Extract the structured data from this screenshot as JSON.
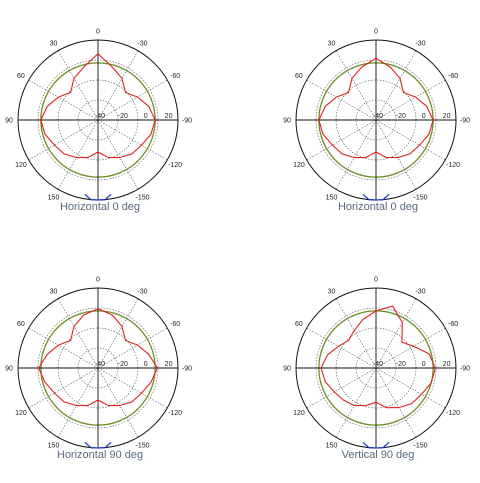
{
  "chart_data": [
    {
      "type": "polar",
      "title": "Horizontal 0 deg",
      "angle_labels": [
        "0",
        "-30",
        "-60",
        "-90",
        "-120",
        "-150",
        "180",
        "150",
        "120",
        "90",
        "60",
        "30"
      ],
      "radial_labels": [
        "-40",
        "-20",
        "0",
        "20"
      ],
      "r_range": [
        -40,
        30
      ],
      "reference_level": 10,
      "series": [
        {
          "color": "#e02020",
          "angles": [
            -180,
            -165,
            -150,
            -135,
            -120,
            -105,
            -90,
            -75,
            -60,
            -45,
            -30,
            -15,
            0,
            15,
            30,
            45,
            60,
            75,
            90,
            105,
            120,
            135,
            150,
            165,
            180
          ],
          "values": [
            -12,
            -6,
            -2,
            2,
            4,
            8,
            10,
            6,
            0,
            -6,
            2,
            8,
            18,
            8,
            2,
            -6,
            0,
            6,
            10,
            8,
            4,
            2,
            -2,
            -6,
            -12
          ]
        },
        {
          "color": "#1f3fbf",
          "angles": [
            170,
            175,
            180,
            -175,
            -170
          ],
          "values": [
            26,
            30,
            30,
            30,
            26
          ]
        }
      ]
    },
    {
      "type": "polar",
      "title": "Horizontal 0 deg",
      "angle_labels": [
        "0",
        "-30",
        "-60",
        "-90",
        "-120",
        "-150",
        "180",
        "150",
        "120",
        "90",
        "60",
        "30"
      ],
      "radial_labels": [
        "-40",
        "-20",
        "0",
        "20"
      ],
      "r_range": [
        -40,
        30
      ],
      "reference_level": 10,
      "series": [
        {
          "color": "#e02020",
          "angles": [
            -180,
            -165,
            -150,
            -135,
            -120,
            -105,
            -90,
            -75,
            -60,
            -45,
            -30,
            -15,
            0,
            15,
            30,
            45,
            60,
            75,
            90,
            105,
            120,
            135,
            150,
            165,
            180
          ],
          "values": [
            -12,
            -6,
            -2,
            2,
            4,
            8,
            10,
            6,
            0,
            -6,
            2,
            8,
            14,
            8,
            2,
            -6,
            0,
            6,
            10,
            8,
            4,
            2,
            -2,
            -6,
            -12
          ]
        },
        {
          "color": "#1f3fbf",
          "angles": [
            170,
            175,
            180,
            -175,
            -170
          ],
          "values": [
            26,
            30,
            30,
            30,
            26
          ]
        }
      ]
    },
    {
      "type": "polar",
      "title": "Horizontal 90 deg",
      "angle_labels": [
        "0",
        "-30",
        "-60",
        "-90",
        "-120",
        "-150",
        "180",
        "150",
        "120",
        "90",
        "60",
        "30"
      ],
      "radial_labels": [
        "-40",
        "-20",
        "0",
        "20"
      ],
      "r_range": [
        -40,
        30
      ],
      "reference_level": 10,
      "series": [
        {
          "color": "#e02020",
          "angles": [
            -180,
            -165,
            -150,
            -135,
            -120,
            -105,
            -90,
            -75,
            -60,
            -45,
            -30,
            -15,
            0,
            15,
            30,
            45,
            60,
            75,
            90,
            105,
            120,
            135,
            150,
            165,
            180
          ],
          "values": [
            -12,
            -6,
            -2,
            2,
            4,
            8,
            12,
            6,
            0,
            -6,
            2,
            8,
            12,
            8,
            2,
            -6,
            0,
            6,
            12,
            8,
            4,
            2,
            -2,
            -6,
            -12
          ]
        },
        {
          "color": "#1f3fbf",
          "angles": [
            170,
            175,
            180,
            -175,
            -170
          ],
          "values": [
            26,
            30,
            30,
            30,
            26
          ]
        }
      ]
    },
    {
      "type": "polar",
      "title": "Vertical 90 deg",
      "angle_labels": [
        "0",
        "-30",
        "-60",
        "-90",
        "-120",
        "-150",
        "180",
        "150",
        "120",
        "90",
        "60",
        "30"
      ],
      "radial_labels": [
        "-40",
        "-20",
        "0",
        "20"
      ],
      "r_range": [
        -40,
        30
      ],
      "reference_level": 10,
      "series": [
        {
          "color": "#e02020",
          "angles": [
            -180,
            -165,
            -150,
            -135,
            -120,
            -105,
            -90,
            -75,
            -60,
            -45,
            -30,
            -15,
            0,
            15,
            30,
            45,
            60,
            75,
            90,
            105,
            120,
            135,
            150,
            165,
            180
          ],
          "values": [
            -10,
            -4,
            0,
            4,
            6,
            10,
            12,
            8,
            -2,
            -8,
            6,
            16,
            10,
            4,
            -2,
            -6,
            -2,
            4,
            8,
            6,
            2,
            0,
            -2,
            -6,
            -10
          ]
        },
        {
          "color": "#1f3fbf",
          "angles": [
            170,
            175,
            180,
            -175,
            -170
          ],
          "values": [
            26,
            30,
            30,
            30,
            26
          ]
        }
      ]
    }
  ]
}
